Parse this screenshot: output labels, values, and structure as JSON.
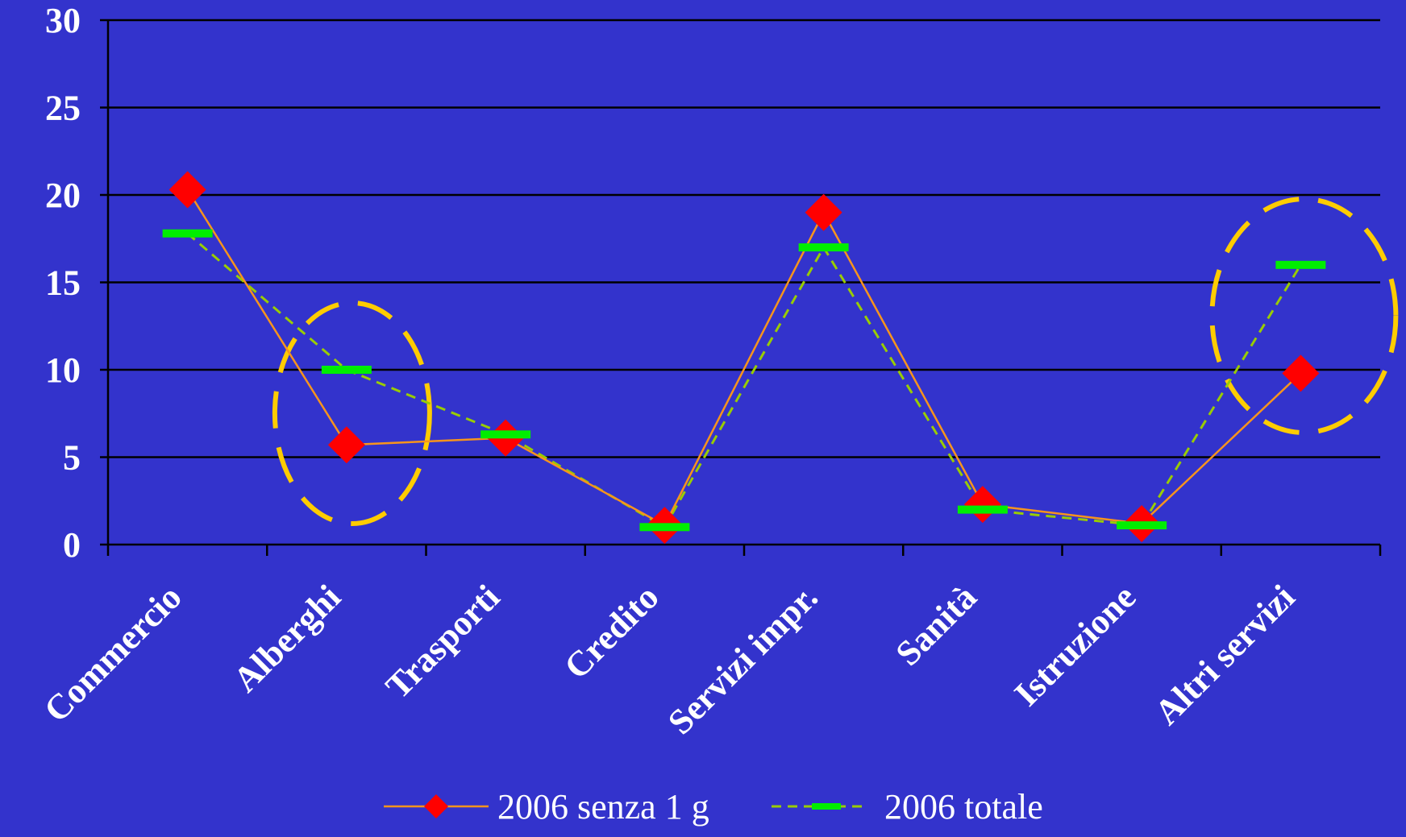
{
  "chart_data": {
    "type": "line",
    "title": "",
    "xlabel": "",
    "ylabel": "",
    "ylim": [
      0,
      30
    ],
    "yticks": [
      0,
      5,
      10,
      15,
      20,
      25,
      30
    ],
    "grid": true,
    "legend_position": "bottom",
    "categories": [
      "Commercio",
      "Alberghi",
      "Trasporti",
      "Credito",
      "Servizi impr.",
      "Sanità",
      "Istruzione",
      "Altri servizi"
    ],
    "series": [
      {
        "name": "2006 senza 1 g",
        "values": [
          20.3,
          5.7,
          6.1,
          1.1,
          19.0,
          2.3,
          1.2,
          9.8
        ],
        "color": "#f7941d",
        "marker": "diamond",
        "marker_color": "#ff0000",
        "line_style": "solid"
      },
      {
        "name": "2006 totale",
        "values": [
          17.8,
          10.0,
          6.3,
          1.0,
          17.0,
          2.0,
          1.1,
          16.0
        ],
        "color": "#99cc00",
        "marker": "dash",
        "marker_color": "#00ee00",
        "line_style": "dashed"
      }
    ],
    "highlights": [
      {
        "category": "Alberghi",
        "color": "#ffcc00"
      },
      {
        "category": "Altri servizi",
        "color": "#ffcc00"
      }
    ]
  },
  "colors": {
    "background": "#3333cc",
    "gridline": "#000000",
    "text": "#ffffff"
  }
}
